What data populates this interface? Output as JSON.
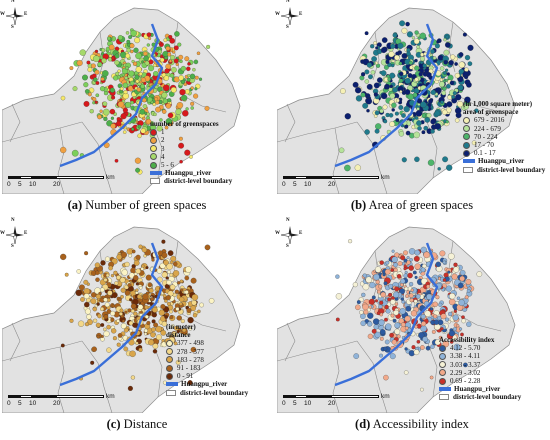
{
  "panels": [
    {
      "id": "a",
      "caption_letter": "(a)",
      "caption_text": " Number of green spaces",
      "legend_title": "number of greenspaces",
      "legend_note": "",
      "legend_classes": [
        {
          "label": "1",
          "color": "#d7191c"
        },
        {
          "label": "2",
          "color": "#f0a040"
        },
        {
          "label": "3",
          "color": "#f6e96a"
        },
        {
          "label": "4",
          "color": "#a6d96a"
        },
        {
          "label": "5 - 6",
          "color": "#4daf4a"
        }
      ],
      "point_colors": [
        "#4daf4a",
        "#7ccf5a",
        "#a6d96a",
        "#f6e96a",
        "#f0a040",
        "#d7191c"
      ]
    },
    {
      "id": "b",
      "caption_letter": "(b)",
      "caption_text": " Area of green spaces",
      "legend_title": "area of greenspace",
      "legend_note": "(in 1,000 square meter)",
      "legend_classes": [
        {
          "label": "679 - 2016",
          "color": "#f5f0b5"
        },
        {
          "label": "224 - 679",
          "color": "#b6e39a"
        },
        {
          "label": "70 - 224",
          "color": "#4db56a"
        },
        {
          "label": "17 - 70",
          "color": "#1f7a8c"
        },
        {
          "label": "0.1 - 17",
          "color": "#0b1f6e"
        }
      ],
      "point_colors": [
        "#0b1f6e",
        "#0b1f6e",
        "#1f7a8c",
        "#1f7a8c",
        "#4db56a",
        "#b6e39a",
        "#f5f0b5"
      ]
    },
    {
      "id": "c",
      "caption_letter": "(c)",
      "caption_text": " Distance",
      "legend_title": "distance",
      "legend_note": "(in meter)",
      "legend_classes": [
        {
          "label": "377 - 498",
          "color": "#fbf3c4"
        },
        {
          "label": "278 - 377",
          "color": "#f3d88a"
        },
        {
          "label": "183 - 278",
          "color": "#d9a54a"
        },
        {
          "label": "91 - 183",
          "color": "#a8611c"
        },
        {
          "label": "0 - 91",
          "color": "#6b2a08"
        }
      ],
      "point_colors": [
        "#6b2a08",
        "#a8611c",
        "#a8611c",
        "#d9a54a",
        "#d9a54a",
        "#f3d88a",
        "#fbf3c4"
      ]
    },
    {
      "id": "d",
      "caption_letter": "(d)",
      "caption_text": " Accessibility index",
      "legend_title": "Accessibility index",
      "legend_note": "",
      "legend_classes": [
        {
          "label": "4.12 - 5.70",
          "color": "#2c5aa0"
        },
        {
          "label": "3.38 - 4.11",
          "color": "#8fb3d9"
        },
        {
          "label": "3.03 - 3.37",
          "color": "#f5f1d6"
        },
        {
          "label": "2.29 - 3.02",
          "color": "#f2a98a"
        },
        {
          "label": "0.69 - 2.28",
          "color": "#c8312a"
        }
      ],
      "point_colors": [
        "#2c5aa0",
        "#8fb3d9",
        "#8fb3d9",
        "#f5f1d6",
        "#f2a98a",
        "#f2a98a",
        "#c8312a"
      ]
    }
  ],
  "legend_common": {
    "river_label": "Huangpu_river",
    "river_color": "#3a6fd8",
    "boundary_label": "district-level boundary"
  },
  "scale": {
    "labels": [
      "0",
      "5",
      "10",
      "20"
    ],
    "unit": "km"
  },
  "compass": {
    "n": "N",
    "s": "S",
    "e": "E",
    "w": "W"
  },
  "colors": {
    "land": "#e2e2e2",
    "boundary": "#8c8c8c",
    "water": "#ffffff"
  }
}
